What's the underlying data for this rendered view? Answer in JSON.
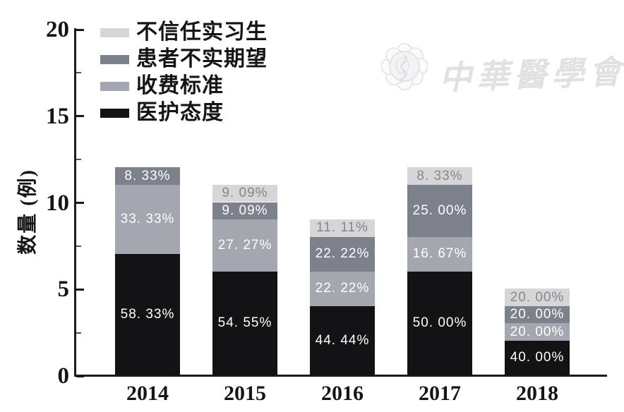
{
  "watermark": {
    "text": "中華醫學會"
  },
  "chart_data": {
    "type": "bar",
    "stacked": true,
    "title": "",
    "xlabel": "",
    "ylabel": "数量 (例)",
    "ylim": [
      0,
      20
    ],
    "yticks": [
      "0",
      "5",
      "10",
      "15",
      "20"
    ],
    "grid": false,
    "legend_position": "top-left",
    "categories": [
      "2014",
      "2015",
      "2016",
      "2017",
      "2018"
    ],
    "series": [
      {
        "name": "医护态度",
        "color": "#131316",
        "label_color": "#ffffff",
        "values": [
          7,
          6,
          4,
          6,
          2
        ],
        "labels": [
          "58. 33%",
          "54. 55%",
          "44. 44%",
          "50. 00%",
          "40. 00%"
        ]
      },
      {
        "name": "收费标准",
        "color": "#a4a7af",
        "label_color": "#ffffff",
        "values": [
          4,
          3,
          2,
          2,
          1
        ],
        "labels": [
          "33. 33%",
          "27. 27%",
          "22. 22%",
          "16. 67%",
          "20. 00%"
        ]
      },
      {
        "name": "患者不实期望",
        "color": "#7c818c",
        "label_color": "#ffffff",
        "values": [
          1,
          1,
          2,
          3,
          1
        ],
        "labels": [
          "8. 33%",
          "9. 09%",
          "22. 22%",
          "25. 00%",
          "20. 00%"
        ]
      },
      {
        "name": "不信任实习生",
        "color": "#d6d6d8",
        "label_color": "#85878d",
        "values": [
          0,
          1,
          1,
          1,
          1
        ],
        "labels": [
          "",
          "9. 09%",
          "11. 11%",
          "8. 33%",
          "20. 00%"
        ]
      }
    ],
    "legend": [
      {
        "label": "不信任实习生",
        "color": "#d6d6d8"
      },
      {
        "label": "患者不实期望",
        "color": "#7c818c"
      },
      {
        "label": "收费标准",
        "color": "#a4a7af"
      },
      {
        "label": "医护态度",
        "color": "#131316"
      }
    ]
  }
}
